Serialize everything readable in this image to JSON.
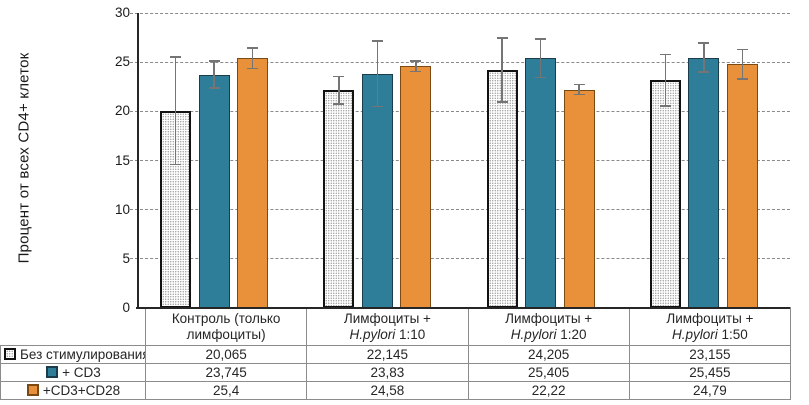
{
  "y_axis": {
    "title": "Процент от всех CD4+ клеток",
    "ticks": [
      {
        "value": 0,
        "label": "0"
      },
      {
        "value": 5,
        "label": "5"
      },
      {
        "value": 10,
        "label": "10"
      },
      {
        "value": 15,
        "label": "15"
      },
      {
        "value": 20,
        "label": "20"
      },
      {
        "value": 25,
        "label": "25"
      },
      {
        "value": 30,
        "label": "30"
      }
    ]
  },
  "colors": {
    "series_no_stim_fill": "#ffffff",
    "series_no_stim_border": "#121212",
    "series_cd3_fill": "#2E7E99",
    "series_cd3cd28_fill": "#E8913A",
    "error_bar": "#757575",
    "gridline": "#8a8a8a",
    "axis": "#262626",
    "table_border": "#8c8c8c"
  },
  "table_headers": [
    {
      "line1": "Контроль (только",
      "line2_italic": "",
      "line2_rest": "лимфоциты)"
    },
    {
      "line1": "Лимфоциты +",
      "line2_italic": "H.pylori",
      "line2_rest": " 1:10"
    },
    {
      "line1": "Лимфоциты +",
      "line2_italic": "H.pylori",
      "line2_rest": " 1:20"
    },
    {
      "line1": "Лимфоциты +",
      "line2_italic": "H.pylori",
      "line2_rest": " 1:50"
    }
  ],
  "chart_data": {
    "type": "bar",
    "title": "",
    "xlabel": "",
    "ylabel": "Процент от всех CD4+ клеток",
    "ylim": [
      0,
      30
    ],
    "ytick_step": 5,
    "grid": "horizontal dashed every 5",
    "legend_position": "table left column",
    "categories": [
      "Контроль (только лимфоциты)",
      "Лимфоциты + H.pylori 1:10",
      "Лимфоциты + H.pylori 1:20",
      "Лимфоциты + H.pylori 1:50"
    ],
    "series": [
      {
        "name": "Без стимулирования",
        "style": "white with dotted pattern, black border",
        "values": [
          20.065,
          22.145,
          24.205,
          23.155
        ],
        "display": [
          "20,065",
          "22,145",
          "24,205",
          "23,155"
        ],
        "errors": [
          5.55,
          1.45,
          3.35,
          2.7
        ]
      },
      {
        "name": "+ CD3",
        "style": "teal solid",
        "values": [
          23.745,
          23.83,
          25.405,
          25.455
        ],
        "display": [
          "23,745",
          "23,83",
          "25,405",
          "25,455"
        ],
        "errors": [
          1.45,
          3.4,
          2.05,
          1.55
        ]
      },
      {
        "name": "+CD3+CD28",
        "style": "orange solid",
        "values": [
          25.4,
          24.58,
          22.22,
          24.79
        ],
        "display": [
          "25,4",
          "24,58",
          "22,22",
          "24,79"
        ],
        "errors": [
          1.1,
          0.6,
          0.6,
          1.6
        ]
      }
    ]
  }
}
